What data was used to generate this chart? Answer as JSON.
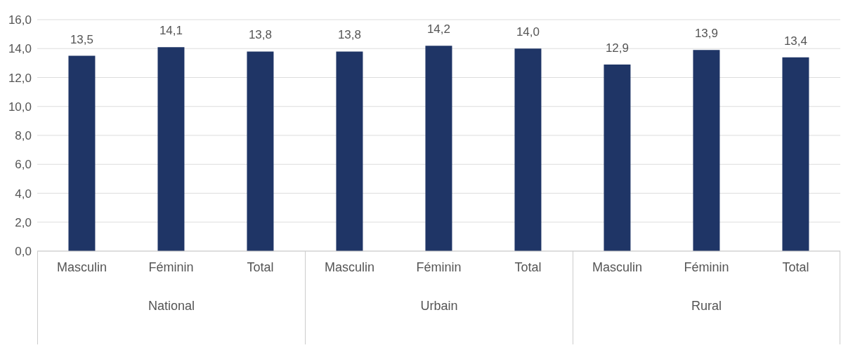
{
  "chart_data": {
    "type": "bar",
    "categories": [
      "Masculin",
      "Féminin",
      "Total",
      "Masculin",
      "Féminin",
      "Total",
      "Masculin",
      "Féminin",
      "Total"
    ],
    "values": [
      13.5,
      14.1,
      13.8,
      13.8,
      14.2,
      14.0,
      12.9,
      13.9,
      13.4
    ],
    "value_labels": [
      "13,5",
      "14,1",
      "13,8",
      "13,8",
      "14,2",
      "14,0",
      "12,9",
      "13,9",
      "13,4"
    ],
    "color": "#1f3566",
    "ylim": [
      0,
      16
    ],
    "yticks": [
      {
        "value": 0,
        "label": "0,0"
      },
      {
        "value": 2,
        "label": "2,0"
      },
      {
        "value": 4,
        "label": "4,0"
      },
      {
        "value": 6,
        "label": "6,0"
      },
      {
        "value": 8,
        "label": "8,0"
      },
      {
        "value": 10,
        "label": "10,0"
      },
      {
        "value": 12,
        "label": "12,0"
      },
      {
        "value": 14,
        "label": "14,0"
      },
      {
        "value": 16,
        "label": "16,0"
      }
    ],
    "grid": "y",
    "annotations": [
      "National",
      "Urbain",
      "Rural"
    ]
  }
}
